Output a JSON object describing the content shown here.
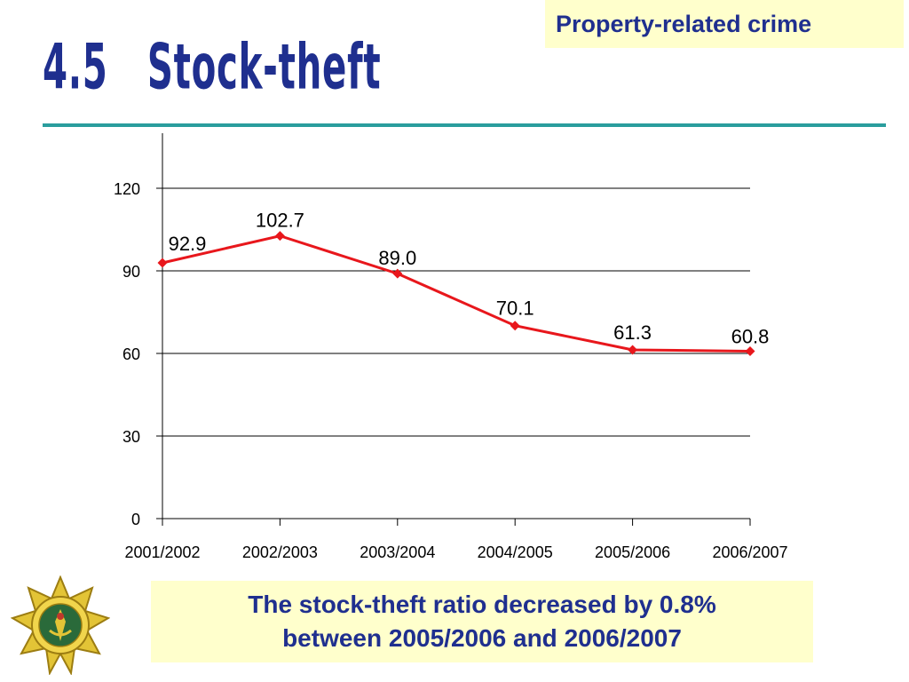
{
  "header": {
    "category": "Property-related crime",
    "title": "4.5   Stock-theft"
  },
  "caption": {
    "line1": "The stock-theft ratio decreased by 0.8%",
    "line2": "between 2005/2006 and 2006/2007"
  },
  "colors": {
    "accent": "#1f2f8f",
    "rule": "#2a9d9d",
    "series": "#e8171c",
    "box": "#ffffcc"
  },
  "logo": {
    "icon": "police-star-badge-icon"
  },
  "chart_data": {
    "type": "line",
    "categories": [
      "2001/2002",
      "2002/2003",
      "2003/2004",
      "2004/2005",
      "2005/2006",
      "2006/2007"
    ],
    "series": [
      {
        "values": [
          92.9,
          102.7,
          89.0,
          70.1,
          61.3,
          60.8
        ],
        "labels": [
          "92.9",
          "102.7",
          "89.0",
          "70.1",
          "61.3",
          "60.8"
        ]
      }
    ],
    "yticks": [
      "0",
      "30",
      "60",
      "90",
      "120"
    ],
    "ylim": [
      0,
      140
    ],
    "grid": true,
    "legend": "none"
  }
}
